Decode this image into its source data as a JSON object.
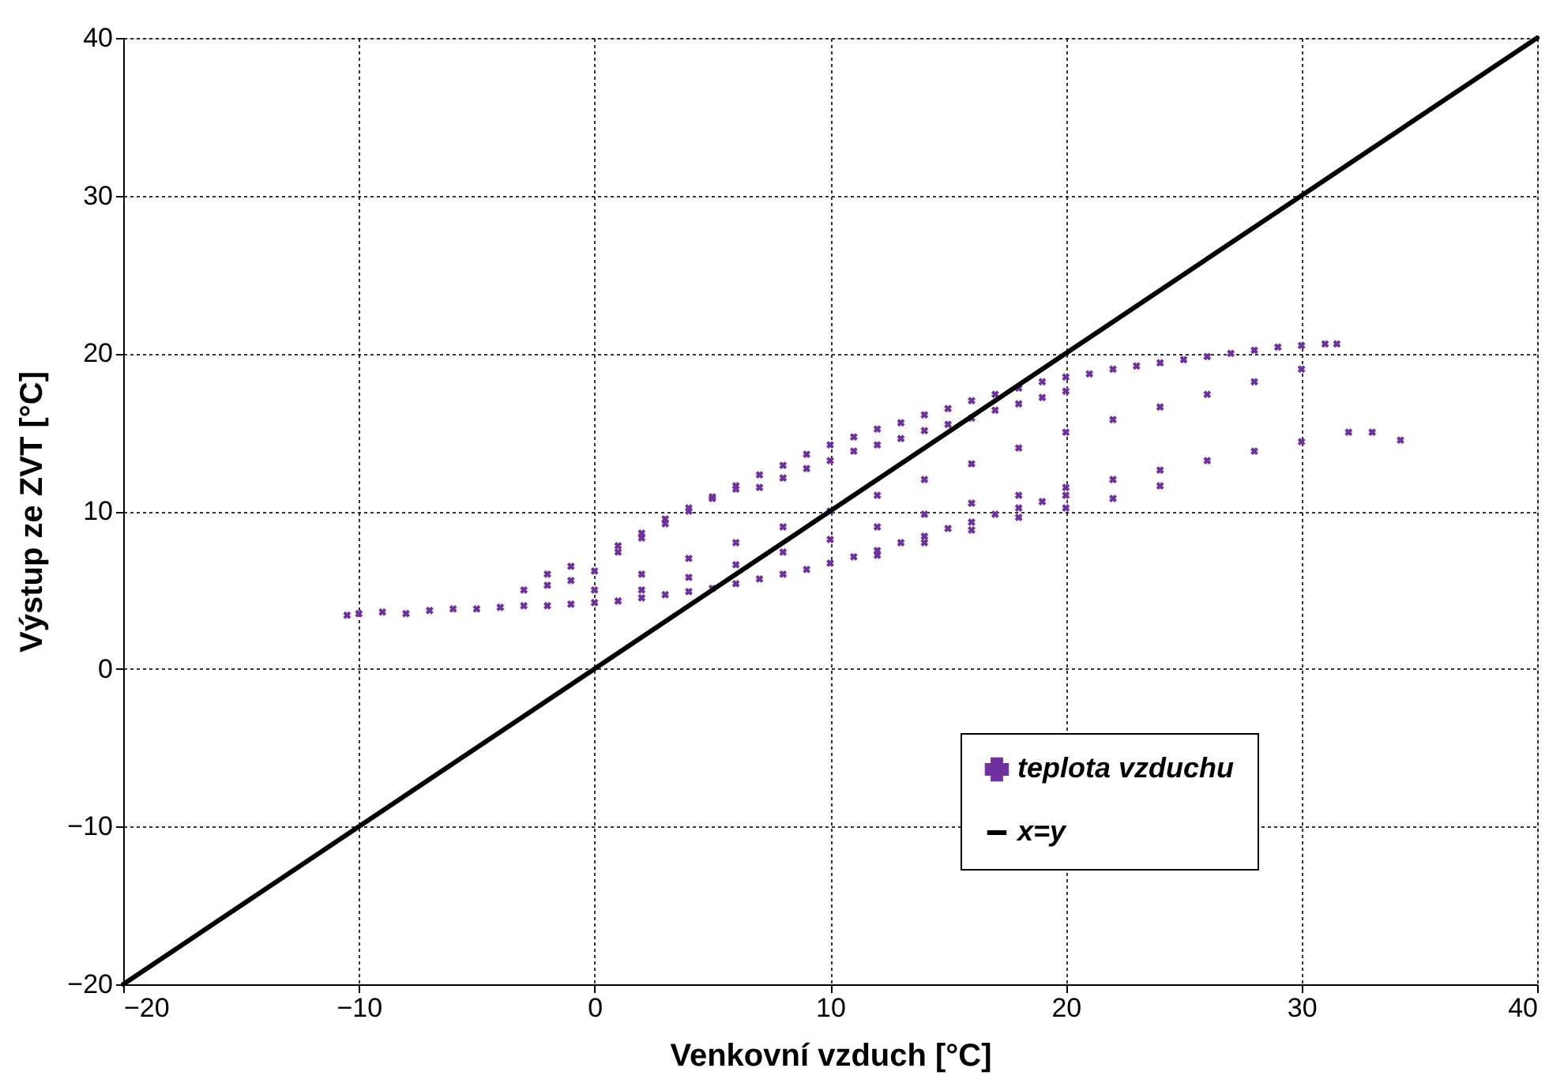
{
  "chart_data": {
    "type": "scatter",
    "xlabel": "Venkovní vzduch  [°C]",
    "ylabel": "Výstup ze ZVT  [°C]",
    "xlim": [
      -20,
      40
    ],
    "ylim": [
      -20,
      40
    ],
    "xticks": [
      -20,
      -10,
      0,
      10,
      20,
      30,
      40
    ],
    "yticks": [
      -20,
      -10,
      0,
      10,
      20,
      30,
      40
    ],
    "grid": true,
    "legend": "bottom right",
    "series": [
      {
        "name": "teplota vzduchu",
        "color": "#7030a0",
        "marker": "cross",
        "x": [
          -10.5,
          -10,
          -9,
          -8,
          -7,
          -6,
          -5,
          -4,
          -3,
          -2,
          -1,
          0,
          1,
          2,
          3,
          4,
          5,
          6,
          7,
          8,
          9,
          10,
          11,
          12,
          13,
          14,
          15,
          16,
          17,
          18,
          19,
          20,
          -3,
          -2,
          -1,
          0,
          1,
          2,
          3,
          4,
          5,
          6,
          7,
          8,
          9,
          10,
          11,
          12,
          13,
          14,
          15,
          16,
          17,
          18,
          19,
          20,
          21,
          22,
          23,
          24,
          25,
          26,
          27,
          28,
          29,
          30,
          31,
          31.5,
          -2,
          -1,
          1,
          2,
          3,
          4,
          5,
          6,
          7,
          8,
          9,
          10,
          11,
          12,
          13,
          14,
          15,
          16,
          17,
          18,
          19,
          20,
          0,
          2,
          4,
          6,
          8,
          10,
          12,
          14,
          16,
          18,
          20,
          22,
          24,
          26,
          28,
          30,
          2,
          4,
          6,
          8,
          10,
          12,
          14,
          16,
          18,
          20,
          22,
          24,
          26,
          28,
          30,
          32,
          33,
          34.2,
          12,
          14,
          16,
          18,
          20,
          22,
          24
        ],
        "values": [
          3.4,
          3.5,
          3.6,
          3.5,
          3.7,
          3.8,
          3.8,
          3.9,
          4.0,
          4.0,
          4.1,
          4.2,
          4.3,
          4.5,
          4.7,
          4.9,
          5.1,
          5.4,
          5.7,
          6.0,
          6.3,
          6.7,
          7.1,
          7.5,
          8.0,
          8.4,
          8.9,
          9.3,
          9.8,
          10.2,
          10.6,
          11.0,
          5.0,
          5.3,
          5.6,
          6.2,
          7.4,
          8.3,
          9.2,
          10.0,
          10.9,
          11.6,
          12.3,
          12.9,
          13.6,
          14.2,
          14.7,
          15.2,
          15.6,
          16.1,
          16.5,
          17.0,
          17.4,
          17.8,
          18.2,
          18.5,
          18.7,
          19.0,
          19.2,
          19.4,
          19.6,
          19.8,
          20.0,
          20.2,
          20.4,
          20.5,
          20.6,
          20.6,
          6.0,
          6.5,
          7.8,
          8.6,
          9.5,
          10.2,
          10.8,
          11.4,
          11.5,
          12.1,
          12.7,
          13.2,
          13.8,
          14.2,
          14.6,
          15.1,
          15.5,
          15.9,
          16.4,
          16.8,
          17.2,
          17.6,
          5.0,
          6.0,
          7.0,
          8.0,
          9.0,
          10.0,
          11.0,
          12.0,
          13.0,
          14.0,
          15.0,
          15.8,
          16.6,
          17.4,
          18.2,
          19.0,
          5.0,
          5.8,
          6.6,
          7.4,
          8.2,
          9.0,
          9.8,
          10.5,
          11.0,
          11.5,
          12.0,
          12.6,
          13.2,
          13.8,
          14.4,
          15.0,
          15.0,
          14.5,
          7.2,
          8.0,
          8.8,
          9.6,
          10.2,
          10.8,
          11.6
        ]
      },
      {
        "name": "x=y",
        "color": "#000000",
        "type": "line",
        "x": [
          -20,
          40
        ],
        "values": [
          -20,
          40
        ]
      }
    ]
  }
}
